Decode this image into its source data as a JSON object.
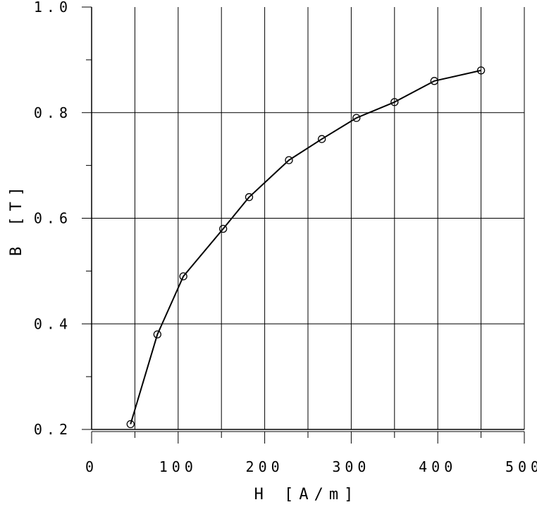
{
  "chart_data": {
    "type": "line",
    "xlabel": "H [A/m]",
    "ylabel": "B [T]",
    "xlim": [
      0,
      500
    ],
    "ylim": [
      0.2,
      1.0
    ],
    "x_ticks": [
      "0",
      "100",
      "200",
      "300",
      "400",
      "500"
    ],
    "y_ticks": [
      "0.2",
      "0.4",
      "0.6",
      "0.8",
      "1.0"
    ],
    "grid": true,
    "marker": "circle",
    "series": [
      {
        "x": [
          45,
          76,
          106,
          152,
          182,
          228,
          266,
          306,
          350,
          396,
          450
        ],
        "y": [
          0.21,
          0.38,
          0.49,
          0.58,
          0.64,
          0.71,
          0.75,
          0.79,
          0.82,
          0.86,
          0.88
        ]
      }
    ]
  }
}
